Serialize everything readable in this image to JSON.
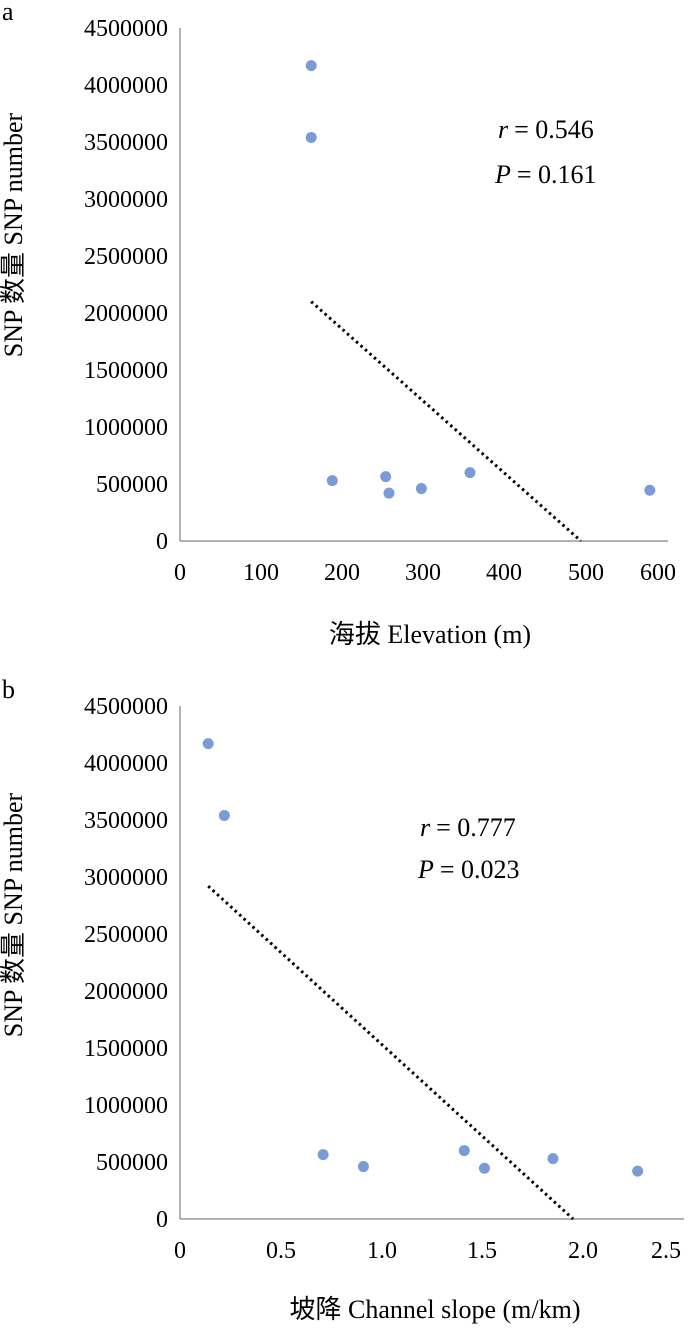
{
  "chart_data": [
    {
      "type": "scatter",
      "panel_label": "a",
      "xlabel": "海拔 Elevation (m)",
      "ylabel": "SNP 数量 SNP number",
      "xlim": [
        0,
        600
      ],
      "ylim": [
        0,
        4500000
      ],
      "x_ticks": [
        "0",
        "100",
        "200",
        "300",
        "400",
        "500",
        "600"
      ],
      "y_ticks": [
        "0",
        "500000",
        "1000000",
        "1500000",
        "2000000",
        "2500000",
        "3000000",
        "3500000",
        "4000000",
        "4500000"
      ],
      "grid": false,
      "points": [
        {
          "x": 162,
          "y": 4170000
        },
        {
          "x": 162,
          "y": 3540000
        },
        {
          "x": 188,
          "y": 530000
        },
        {
          "x": 254,
          "y": 565000
        },
        {
          "x": 258,
          "y": 420000
        },
        {
          "x": 298,
          "y": 460000
        },
        {
          "x": 358,
          "y": 600000
        },
        {
          "x": 580,
          "y": 445000
        }
      ],
      "trendline": {
        "style": "dotted",
        "x": [
          162,
          495
        ],
        "y": [
          2100000,
          0
        ]
      },
      "point_color": "#7b9bd6",
      "annotation": {
        "r_symbol": "r",
        "r_value": "= 0.546",
        "p_symbol": "P",
        "p_value": "= 0.161"
      }
    },
    {
      "type": "scatter",
      "panel_label": "b",
      "xlabel": "坡降 Channel slope (m/km)",
      "ylabel": "SNP 数量 SNP number",
      "xlim": [
        0,
        2.5
      ],
      "ylim": [
        0,
        4500000
      ],
      "x_ticks": [
        "0",
        "0.5",
        "1.0",
        "1.5",
        "2.0",
        "2.5"
      ],
      "y_ticks": [
        "0",
        "500000",
        "1000000",
        "1500000",
        "2000000",
        "2500000",
        "3000000",
        "3500000",
        "4000000",
        "4500000"
      ],
      "grid": false,
      "points": [
        {
          "x": 0.14,
          "y": 4170000
        },
        {
          "x": 0.22,
          "y": 3540000
        },
        {
          "x": 0.71,
          "y": 565000
        },
        {
          "x": 0.91,
          "y": 460000
        },
        {
          "x": 1.41,
          "y": 600000
        },
        {
          "x": 1.51,
          "y": 445000
        },
        {
          "x": 1.85,
          "y": 530000
        },
        {
          "x": 2.27,
          "y": 420000
        }
      ],
      "trendline": {
        "style": "dotted",
        "x": [
          0.14,
          1.95
        ],
        "y": [
          2920000,
          0
        ]
      },
      "point_color": "#7b9bd6",
      "annotation": {
        "r_symbol": "r",
        "r_value": "= 0.777",
        "p_symbol": "P",
        "p_value": "= 0.023"
      }
    }
  ]
}
